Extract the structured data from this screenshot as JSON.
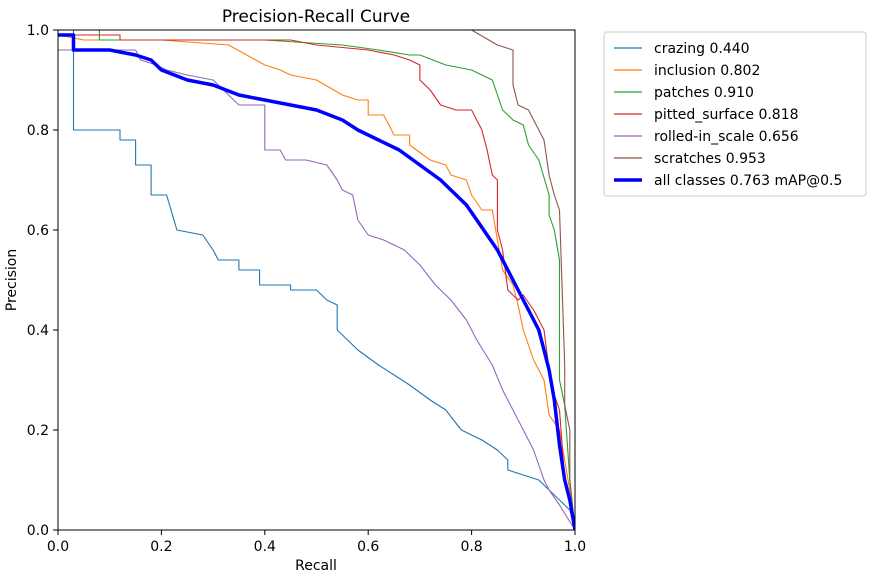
{
  "chart_data": {
    "type": "line",
    "title": "Precision-Recall Curve",
    "xlabel": "Recall",
    "ylabel": "Precision",
    "xlim": [
      0.0,
      1.0
    ],
    "ylim": [
      0.0,
      1.0
    ],
    "xticks": [
      "0.0",
      "0.2",
      "0.4",
      "0.6",
      "0.8",
      "1.0"
    ],
    "yticks": [
      "0.0",
      "0.2",
      "0.4",
      "0.6",
      "0.8",
      "1.0"
    ],
    "grid": false,
    "legend_position": "outside-top-right",
    "series": [
      {
        "name": "crazing 0.440",
        "color": "#1f77b4",
        "bold": false,
        "points": [
          [
            0,
            1.0
          ],
          [
            0.03,
            1.0
          ],
          [
            0.03,
            0.8
          ],
          [
            0.12,
            0.8
          ],
          [
            0.12,
            0.78
          ],
          [
            0.15,
            0.78
          ],
          [
            0.15,
            0.73
          ],
          [
            0.18,
            0.73
          ],
          [
            0.18,
            0.67
          ],
          [
            0.21,
            0.67
          ],
          [
            0.23,
            0.6
          ],
          [
            0.28,
            0.59
          ],
          [
            0.3,
            0.56
          ],
          [
            0.31,
            0.54
          ],
          [
            0.35,
            0.54
          ],
          [
            0.35,
            0.52
          ],
          [
            0.39,
            0.52
          ],
          [
            0.39,
            0.49
          ],
          [
            0.45,
            0.49
          ],
          [
            0.45,
            0.48
          ],
          [
            0.5,
            0.48
          ],
          [
            0.52,
            0.46
          ],
          [
            0.54,
            0.45
          ],
          [
            0.54,
            0.4
          ],
          [
            0.58,
            0.36
          ],
          [
            0.62,
            0.33
          ],
          [
            0.65,
            0.31
          ],
          [
            0.68,
            0.29
          ],
          [
            0.72,
            0.26
          ],
          [
            0.75,
            0.24
          ],
          [
            0.78,
            0.2
          ],
          [
            0.82,
            0.18
          ],
          [
            0.85,
            0.16
          ],
          [
            0.87,
            0.14
          ],
          [
            0.87,
            0.12
          ],
          [
            0.9,
            0.11
          ],
          [
            0.93,
            0.1
          ],
          [
            0.95,
            0.08
          ],
          [
            0.97,
            0.06
          ],
          [
            0.99,
            0.04
          ],
          [
            1.0,
            0.0
          ]
        ]
      },
      {
        "name": "inclusion 0.802",
        "color": "#ff7f0e",
        "bold": false,
        "points": [
          [
            0,
            0.99
          ],
          [
            0.05,
            0.98
          ],
          [
            0.2,
            0.98
          ],
          [
            0.33,
            0.97
          ],
          [
            0.4,
            0.93
          ],
          [
            0.43,
            0.92
          ],
          [
            0.45,
            0.91
          ],
          [
            0.5,
            0.9
          ],
          [
            0.55,
            0.87
          ],
          [
            0.58,
            0.86
          ],
          [
            0.6,
            0.86
          ],
          [
            0.6,
            0.83
          ],
          [
            0.63,
            0.83
          ],
          [
            0.65,
            0.79
          ],
          [
            0.68,
            0.79
          ],
          [
            0.68,
            0.77
          ],
          [
            0.72,
            0.74
          ],
          [
            0.75,
            0.73
          ],
          [
            0.76,
            0.71
          ],
          [
            0.79,
            0.7
          ],
          [
            0.8,
            0.67
          ],
          [
            0.82,
            0.64
          ],
          [
            0.84,
            0.64
          ],
          [
            0.85,
            0.58
          ],
          [
            0.86,
            0.52
          ],
          [
            0.88,
            0.49
          ],
          [
            0.89,
            0.45
          ],
          [
            0.9,
            0.4
          ],
          [
            0.92,
            0.34
          ],
          [
            0.93,
            0.32
          ],
          [
            0.94,
            0.3
          ],
          [
            0.95,
            0.23
          ],
          [
            0.97,
            0.2
          ],
          [
            0.99,
            0.08
          ],
          [
            1.0,
            0.0
          ]
        ]
      },
      {
        "name": "patches 0.910",
        "color": "#2ca02c",
        "bold": false,
        "points": [
          [
            0,
            1.0
          ],
          [
            0.08,
            1.0
          ],
          [
            0.08,
            0.98
          ],
          [
            0.25,
            0.98
          ],
          [
            0.4,
            0.98
          ],
          [
            0.55,
            0.97
          ],
          [
            0.62,
            0.96
          ],
          [
            0.68,
            0.95
          ],
          [
            0.7,
            0.95
          ],
          [
            0.75,
            0.93
          ],
          [
            0.8,
            0.92
          ],
          [
            0.82,
            0.91
          ],
          [
            0.84,
            0.9
          ],
          [
            0.86,
            0.84
          ],
          [
            0.88,
            0.82
          ],
          [
            0.9,
            0.81
          ],
          [
            0.91,
            0.77
          ],
          [
            0.93,
            0.74
          ],
          [
            0.95,
            0.67
          ],
          [
            0.95,
            0.63
          ],
          [
            0.96,
            0.6
          ],
          [
            0.97,
            0.54
          ],
          [
            0.97,
            0.3
          ],
          [
            0.98,
            0.25
          ],
          [
            0.99,
            0.1
          ],
          [
            1.0,
            0.0
          ]
        ]
      },
      {
        "name": "pitted_surface 0.818",
        "color": "#d62728",
        "bold": false,
        "points": [
          [
            0,
            0.99
          ],
          [
            0.12,
            0.99
          ],
          [
            0.12,
            0.98
          ],
          [
            0.25,
            0.98
          ],
          [
            0.45,
            0.98
          ],
          [
            0.5,
            0.97
          ],
          [
            0.6,
            0.96
          ],
          [
            0.65,
            0.95
          ],
          [
            0.68,
            0.94
          ],
          [
            0.7,
            0.93
          ],
          [
            0.7,
            0.9
          ],
          [
            0.72,
            0.88
          ],
          [
            0.74,
            0.85
          ],
          [
            0.77,
            0.84
          ],
          [
            0.8,
            0.84
          ],
          [
            0.82,
            0.8
          ],
          [
            0.83,
            0.76
          ],
          [
            0.84,
            0.71
          ],
          [
            0.85,
            0.7
          ],
          [
            0.85,
            0.6
          ],
          [
            0.86,
            0.56
          ],
          [
            0.87,
            0.48
          ],
          [
            0.89,
            0.46
          ],
          [
            0.9,
            0.47
          ],
          [
            0.92,
            0.44
          ],
          [
            0.94,
            0.4
          ],
          [
            0.95,
            0.32
          ],
          [
            0.96,
            0.27
          ],
          [
            0.97,
            0.24
          ],
          [
            0.98,
            0.1
          ],
          [
            1.0,
            0.0
          ]
        ]
      },
      {
        "name": "rolled-in_scale 0.656",
        "color": "#9467bd",
        "bold": false,
        "points": [
          [
            0,
            0.96
          ],
          [
            0.15,
            0.96
          ],
          [
            0.16,
            0.94
          ],
          [
            0.19,
            0.93
          ],
          [
            0.21,
            0.92
          ],
          [
            0.25,
            0.91
          ],
          [
            0.3,
            0.9
          ],
          [
            0.33,
            0.87
          ],
          [
            0.35,
            0.85
          ],
          [
            0.4,
            0.85
          ],
          [
            0.4,
            0.76
          ],
          [
            0.43,
            0.76
          ],
          [
            0.44,
            0.74
          ],
          [
            0.48,
            0.74
          ],
          [
            0.52,
            0.73
          ],
          [
            0.54,
            0.7
          ],
          [
            0.55,
            0.68
          ],
          [
            0.57,
            0.67
          ],
          [
            0.58,
            0.62
          ],
          [
            0.6,
            0.59
          ],
          [
            0.63,
            0.58
          ],
          [
            0.67,
            0.56
          ],
          [
            0.7,
            0.53
          ],
          [
            0.73,
            0.49
          ],
          [
            0.76,
            0.46
          ],
          [
            0.79,
            0.42
          ],
          [
            0.81,
            0.38
          ],
          [
            0.84,
            0.33
          ],
          [
            0.86,
            0.28
          ],
          [
            0.88,
            0.24
          ],
          [
            0.9,
            0.2
          ],
          [
            0.92,
            0.16
          ],
          [
            0.94,
            0.1
          ],
          [
            0.95,
            0.08
          ],
          [
            0.97,
            0.05
          ],
          [
            1.0,
            0.0
          ]
        ]
      },
      {
        "name": "scratches 0.953",
        "color": "#8c564b",
        "bold": false,
        "points": [
          [
            0,
            1.0
          ],
          [
            0.77,
            1.0
          ],
          [
            0.8,
            1.0
          ],
          [
            0.85,
            0.97
          ],
          [
            0.88,
            0.96
          ],
          [
            0.88,
            0.89
          ],
          [
            0.89,
            0.85
          ],
          [
            0.91,
            0.84
          ],
          [
            0.93,
            0.8
          ],
          [
            0.94,
            0.78
          ],
          [
            0.95,
            0.71
          ],
          [
            0.96,
            0.67
          ],
          [
            0.97,
            0.64
          ],
          [
            0.98,
            0.33
          ],
          [
            0.98,
            0.25
          ],
          [
            0.99,
            0.2
          ],
          [
            0.99,
            0.1
          ],
          [
            1.0,
            0.0
          ]
        ]
      },
      {
        "name": "all classes 0.763 mAP@0.5",
        "color": "#0000ff",
        "bold": true,
        "points": [
          [
            0,
            0.99
          ],
          [
            0.03,
            0.99
          ],
          [
            0.03,
            0.96
          ],
          [
            0.1,
            0.96
          ],
          [
            0.15,
            0.95
          ],
          [
            0.18,
            0.94
          ],
          [
            0.2,
            0.92
          ],
          [
            0.25,
            0.9
          ],
          [
            0.3,
            0.89
          ],
          [
            0.35,
            0.87
          ],
          [
            0.4,
            0.86
          ],
          [
            0.45,
            0.85
          ],
          [
            0.5,
            0.84
          ],
          [
            0.55,
            0.82
          ],
          [
            0.58,
            0.8
          ],
          [
            0.62,
            0.78
          ],
          [
            0.66,
            0.76
          ],
          [
            0.7,
            0.73
          ],
          [
            0.74,
            0.7
          ],
          [
            0.77,
            0.67
          ],
          [
            0.79,
            0.65
          ],
          [
            0.81,
            0.62
          ],
          [
            0.83,
            0.59
          ],
          [
            0.85,
            0.56
          ],
          [
            0.87,
            0.52
          ],
          [
            0.89,
            0.48
          ],
          [
            0.91,
            0.44
          ],
          [
            0.93,
            0.4
          ],
          [
            0.94,
            0.36
          ],
          [
            0.95,
            0.32
          ],
          [
            0.96,
            0.26
          ],
          [
            0.97,
            0.17
          ],
          [
            0.98,
            0.1
          ],
          [
            0.99,
            0.06
          ],
          [
            1.0,
            0.0
          ]
        ]
      }
    ]
  }
}
